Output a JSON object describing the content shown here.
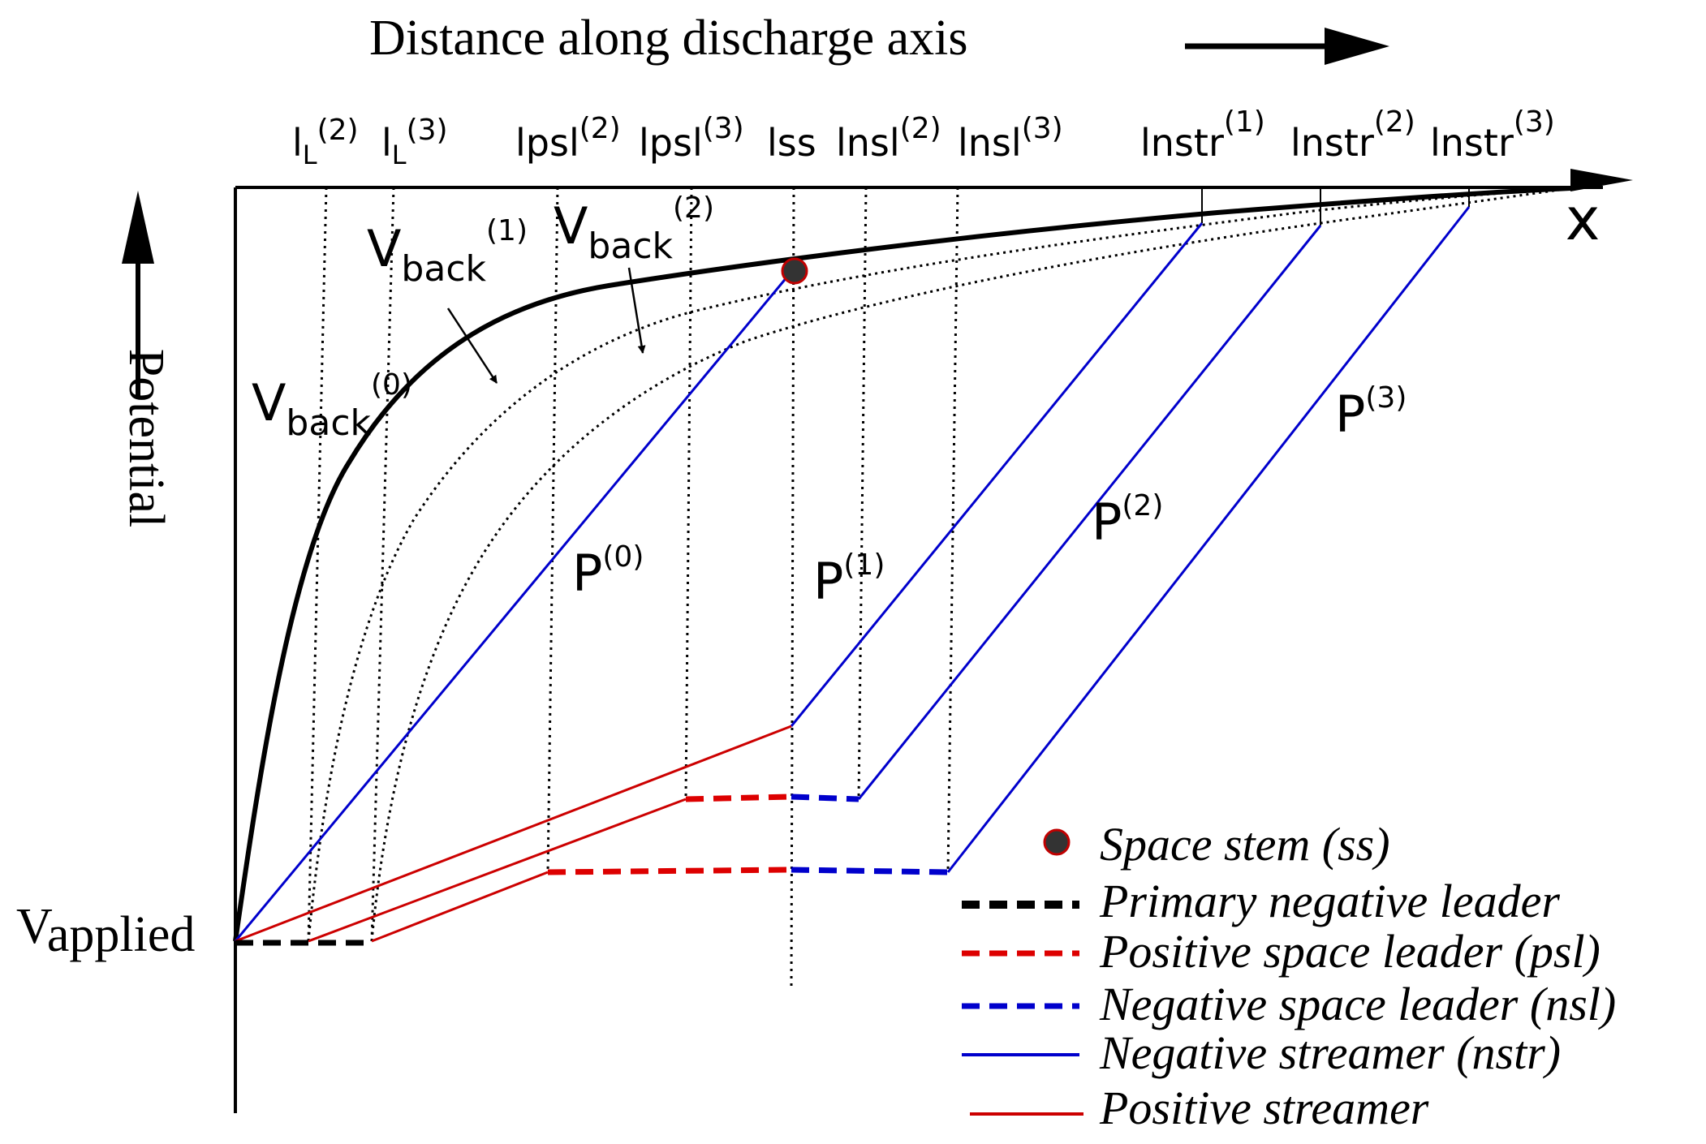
{
  "title": "Distance along discharge axis",
  "axes": {
    "x_symbol": "x",
    "y_label": "Potential",
    "origin_label": {
      "main": "V",
      "sub": "applied"
    }
  },
  "marker_labels": [
    {
      "base": "l",
      "sub": "L",
      "sup": "(2)"
    },
    {
      "base": "l",
      "sub": "L",
      "sup": "(3)"
    },
    {
      "base": "l",
      "sub": "psl",
      "sup": "(2)"
    },
    {
      "base": "l",
      "sub": "psl",
      "sup": "(3)"
    },
    {
      "base": "l",
      "sub": "ss",
      "sup": ""
    },
    {
      "base": "l",
      "sub": "nsl",
      "sup": "(2)"
    },
    {
      "base": "l",
      "sub": "nsl",
      "sup": "(3)"
    },
    {
      "base": "l",
      "sub": "nstr",
      "sup": "(1)"
    },
    {
      "base": "l",
      "sub": "nstr",
      "sup": "(2)"
    },
    {
      "base": "l",
      "sub": "nstr",
      "sup": "(3)"
    }
  ],
  "curve_labels": [
    {
      "base": "V",
      "sub": "back",
      "sup": "(0)"
    },
    {
      "base": "V",
      "sub": "back",
      "sup": "(1)"
    },
    {
      "base": "V",
      "sub": "back",
      "sup": "(2)"
    }
  ],
  "potential_labels": [
    {
      "base": "P",
      "sup": "(0)"
    },
    {
      "base": "P",
      "sup": "(1)"
    },
    {
      "base": "P",
      "sup": "(2)"
    },
    {
      "base": "P",
      "sup": "(3)"
    }
  ],
  "legend": [
    {
      "label": "Space stem (ss)",
      "symbol": "dot",
      "color": "#333333",
      "edge": "#c00000"
    },
    {
      "label": "Primary negative leader",
      "symbol": "dash",
      "color": "#000000"
    },
    {
      "label": "Positive space leader (psl)",
      "symbol": "dash",
      "color": "#dd0000"
    },
    {
      "label": "Negative space leader (nsl)",
      "symbol": "dash",
      "color": "#0000cc"
    },
    {
      "label": "Negative streamer (nstr)",
      "symbol": "line",
      "color": "#0000cc"
    },
    {
      "label": "Positive streamer",
      "symbol": "line",
      "color": "#cc0000"
    }
  ],
  "colors": {
    "axis": "#000000",
    "negative": "#0000cc",
    "positive": "#cc0000",
    "positive_dash": "#dd0000",
    "curve": "#000000"
  }
}
